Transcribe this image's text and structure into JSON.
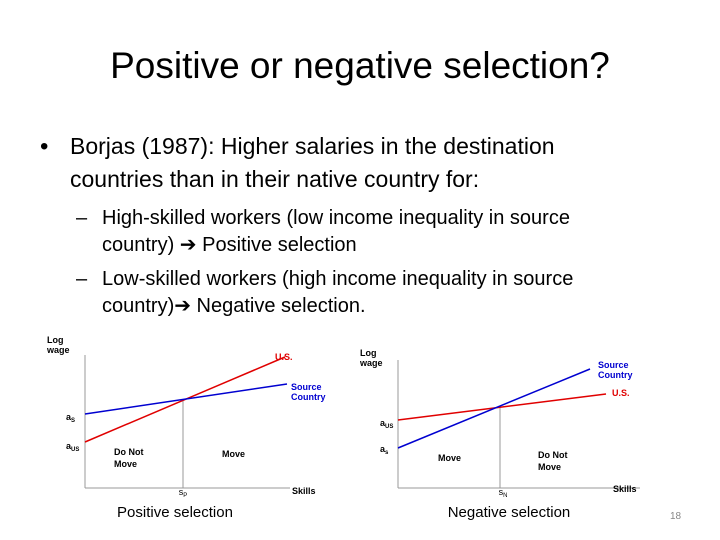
{
  "slide": {
    "title": "Positive or negative selection?",
    "bullet": {
      "lines": [
        "Borjas (1987): Higher salaries in the destination",
        "countries than in their native country for:"
      ],
      "subs": [
        [
          "High-skilled workers (low income inequality in source",
          "country) ➔ Positive selection"
        ],
        [
          "Low-skilled workers (high income inequality in source",
          "country)➔ Negative selection."
        ]
      ]
    },
    "diagrams": [
      {
        "y_label": [
          "Log",
          "wage"
        ],
        "x_label": "Skills",
        "caption": "Positive selection",
        "us_label": "U.S.",
        "source_label": [
          "Source",
          "Country"
        ],
        "intercepts": [
          {
            "base": "a",
            "sub": "S"
          },
          {
            "base": "a",
            "sub": "US"
          }
        ],
        "regions": [
          [
            "Do Not",
            "Move"
          ],
          [
            "Move"
          ]
        ],
        "threshold": {
          "base": "s",
          "sub": "P"
        }
      },
      {
        "y_label": [
          "Log",
          "wage"
        ],
        "x_label": "Skills",
        "caption": "Negative selection",
        "us_label": "U.S.",
        "source_label": [
          "Source",
          "Country"
        ],
        "intercepts": [
          {
            "base": "a",
            "sub": "US"
          },
          {
            "base": "a",
            "sub": "s"
          }
        ],
        "regions": [
          [
            "Move"
          ],
          [
            "Do Not",
            "Move"
          ]
        ],
        "threshold": {
          "base": "s",
          "sub": "N"
        }
      }
    ],
    "page_number": "18"
  }
}
